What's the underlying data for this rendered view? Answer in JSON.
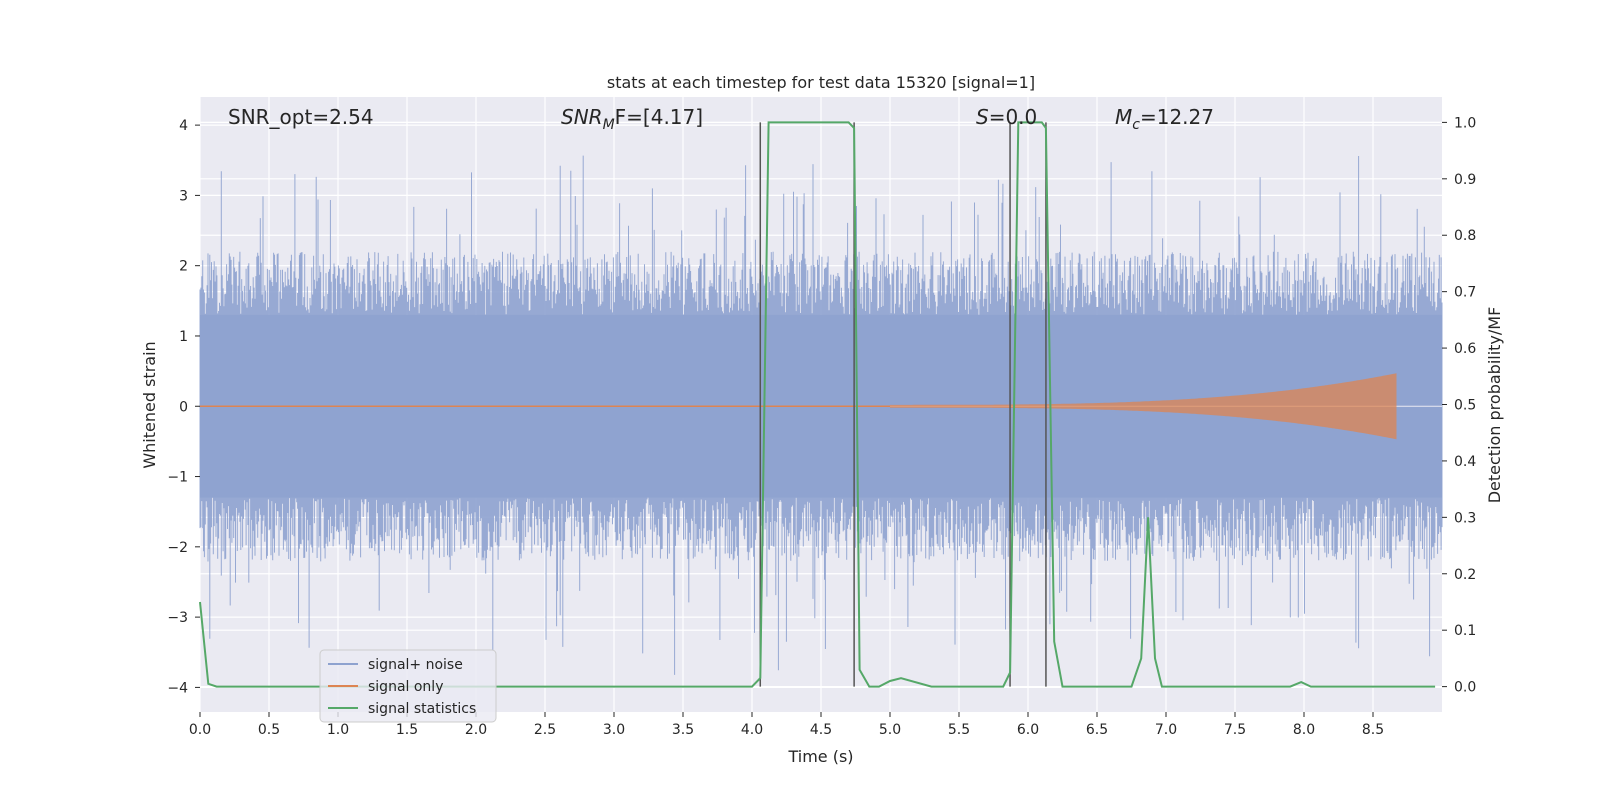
{
  "chart_data": {
    "type": "line",
    "title": "stats at each timestep for test data 15320 [signal=1]",
    "xlabel": "Time (s)",
    "ylabel": "Whitened strain",
    "y2label": "Detection probability/MF",
    "xlim": [
      0,
      9
    ],
    "ylim": [
      -4.35,
      4.4
    ],
    "y2lim": [
      -0.045,
      1.045
    ],
    "x_ticks": [
      "0.0",
      "0.5",
      "1.0",
      "1.5",
      "2.0",
      "2.5",
      "3.0",
      "3.5",
      "4.0",
      "4.5",
      "5.0",
      "5.5",
      "6.0",
      "6.5",
      "7.0",
      "7.5",
      "8.0",
      "8.5"
    ],
    "y_ticks": [
      "4",
      "3",
      "2",
      "1",
      "0",
      "−1",
      "−2",
      "−3",
      "−4"
    ],
    "y2_ticks": [
      "1.0",
      "0.9",
      "0.8",
      "0.7",
      "0.6",
      "0.5",
      "0.4",
      "0.3",
      "0.2",
      "0.1",
      "0.0"
    ],
    "grid": true,
    "legend_position": "lower-left",
    "annotations": {
      "snr_opt": "SNR_opt=2.54",
      "snr_mf_main": "SNR",
      "snr_mf_sub": "M",
      "snr_mf_rest": "F=[4.17]",
      "s_main": "S",
      "s_rest": "=0.0",
      "mc_main": "M",
      "mc_sub": "c",
      "mc_rest": "=12.27"
    },
    "vertical_markers": [
      4.06,
      4.74,
      5.87,
      6.13
    ],
    "series": [
      {
        "name": "signal+ noise",
        "color": "#4c72b0",
        "description_values": "dense whitened noise, roughly ±2 with spikes up to ~3.8 and down to ~-3.9"
      },
      {
        "name": "signal only",
        "color": "#dd8452",
        "chirp_start": 5.0,
        "chirp_end": 8.67,
        "peak_amplitude": 0.45
      },
      {
        "name": "signal statistics",
        "color": "#55a868",
        "axis": "right",
        "x": [
          0.0,
          0.06,
          0.12,
          4.0,
          4.06,
          4.12,
          4.7,
          4.74,
          4.78,
          4.85,
          4.92,
          5.0,
          5.08,
          5.3,
          5.82,
          5.87,
          5.93,
          6.1,
          6.13,
          6.19,
          6.25,
          6.75,
          6.82,
          6.87,
          6.92,
          6.97,
          7.9,
          7.98,
          8.05,
          8.95
        ],
        "values": [
          0.15,
          0.005,
          0.0,
          0.0,
          0.015,
          1.0,
          1.0,
          0.99,
          0.03,
          0.0,
          0.0,
          0.01,
          0.015,
          0.0,
          0.0,
          0.025,
          1.0,
          1.0,
          0.99,
          0.08,
          0.0,
          0.0,
          0.05,
          0.3,
          0.05,
          0.0,
          0.0,
          0.008,
          0.0,
          0.0
        ]
      }
    ],
    "legend": [
      "signal+ noise",
      "signal only",
      "signal statistics"
    ]
  }
}
